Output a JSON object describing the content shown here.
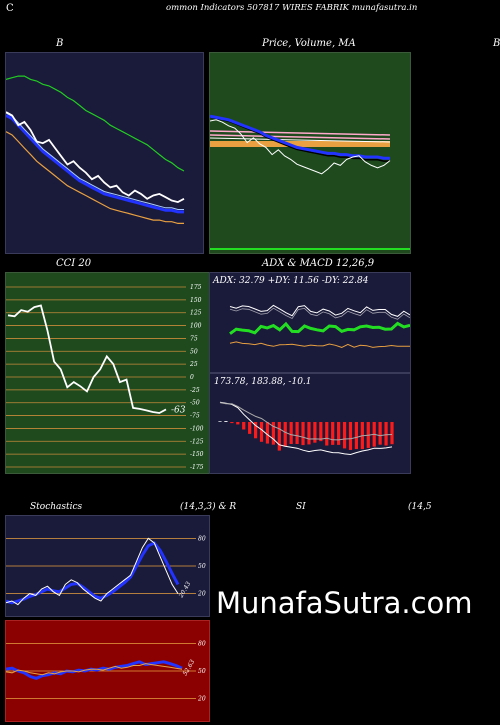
{
  "header": {
    "c_letter": "C",
    "title": "ommon  Indicators 507817 WIRES FABRIK munafasutra.in"
  },
  "labels": {
    "bollinger": "B",
    "price_ma": "Price,  Volume, MA",
    "right_edge": "B",
    "cci": "CCI 20",
    "adx_macd": "ADX  & MACD 12,26,9",
    "adx_values": "ADX: 32.79  +DY: 11.56  -DY: 22.84",
    "macd_values": "173.78,  183.88,  -10.1",
    "stochastics": "Stochastics",
    "stoch_params": "(14,3,3) & R",
    "si": "SI",
    "si_params": "(14,5",
    "watermark": "MunafaSutra.com",
    "cci_value": "-63",
    "stoch_value": "20.43",
    "rsi_value": "52.63"
  },
  "colors": {
    "navy_panel": "#1a1a3a",
    "green_panel": "#1e4a1e",
    "red_panel": "#8b0000",
    "orange": "#e8a040",
    "blue": "#2222ff",
    "bright_green": "#22dd22",
    "red_bars": "#ff1a1a"
  },
  "chart_data": [
    {
      "type": "line",
      "title": "B",
      "series": [
        {
          "values": [
            230,
            228,
            222,
            224,
            219,
            212,
            211,
            213,
            208,
            203,
            198,
            200,
            196,
            193,
            189,
            191,
            187,
            184,
            185,
            181,
            179,
            182,
            180,
            177,
            179,
            180,
            178,
            176,
            175,
            177
          ]
        },
        {
          "values": [
            228,
            226,
            222,
            218,
            214,
            210,
            206,
            203,
            200,
            197,
            194,
            191,
            188,
            186,
            184,
            182,
            180,
            179,
            178,
            177,
            176,
            175,
            174,
            173,
            172,
            171,
            170,
            170,
            169,
            169
          ]
        },
        {
          "values": [
            218,
            216,
            212,
            208,
            204,
            200,
            197,
            194,
            191,
            188,
            185,
            183,
            181,
            179,
            177,
            175,
            173,
            171,
            170,
            169,
            168,
            167,
            166,
            165,
            164,
            164,
            163,
            163,
            162,
            162
          ]
        },
        {
          "values": [
            250,
            251,
            252,
            252,
            250,
            249,
            247,
            246,
            244,
            242,
            239,
            237,
            234,
            231,
            229,
            227,
            225,
            222,
            220,
            218,
            216,
            214,
            212,
            210,
            207,
            204,
            201,
            199,
            196,
            194
          ]
        }
      ]
    },
    {
      "type": "line",
      "title": "Price,  Volume, MA",
      "series": [
        {
          "values": [
            200,
            201,
            199,
            196,
            194,
            189,
            182,
            186,
            181,
            178,
            172,
            176,
            171,
            168,
            164,
            162,
            160,
            158,
            156,
            160,
            165,
            163,
            168,
            170,
            171,
            166,
            163,
            161,
            163,
            167
          ]
        },
        {
          "values": [
            204,
            203,
            202,
            201,
            199,
            197,
            195,
            193,
            191,
            188,
            186,
            184,
            182,
            180,
            178,
            177,
            176,
            175,
            174,
            173,
            173,
            172,
            172,
            171,
            171,
            170,
            170,
            170,
            169,
            169
          ]
        }
      ]
    },
    {
      "type": "line",
      "title": "CCI 20",
      "ylim": [
        -175,
        175
      ],
      "yticks": [
        175,
        150,
        125,
        100,
        75,
        50,
        25,
        0,
        -25,
        -50,
        -75,
        -100,
        -125,
        -150,
        -175
      ],
      "series": [
        {
          "values": [
            120,
            118,
            130,
            127,
            136,
            139,
            90,
            30,
            15,
            -20,
            -10,
            -18,
            -28,
            0,
            15,
            40,
            25,
            -10,
            -5,
            -60,
            -62,
            -65,
            -68,
            -70,
            -63
          ]
        }
      ]
    },
    {
      "type": "line",
      "title": "ADX  & MACD 12,26,9",
      "series": [
        {
          "name": "ADX",
          "values": [
            32.8,
            31.9,
            33.1,
            32.8,
            31.5,
            30.2,
            30.6,
            33.4,
            31.5,
            29.5,
            27.9,
            32.7,
            33.3,
            30.2,
            29.4,
            31.4,
            30.4,
            28.2,
            29.2,
            31.8,
            30.5,
            29.5,
            32.6,
            30.7,
            31.2,
            31.2,
            28.6,
            27.5,
            30.3,
            28.3
          ]
        },
        {
          "name": "+DY",
          "values": [
            13.2,
            13.9,
            13.1,
            12.9,
            12.5,
            13.2,
            12.2,
            11.6,
            12.4,
            12.5,
            12.7,
            12.1,
            11.6,
            12.2,
            11.9,
            11.8,
            12.8,
            12.1,
            11.0,
            12.6,
            11.1,
            12.1,
            11.9,
            11.0,
            11.4,
            11.5,
            12.0,
            11.6,
            11.6,
            11.6
          ]
        },
        {
          "name": "-DY",
          "values": [
            18.3,
            20.7,
            20.2,
            19.9,
            18.8,
            22.2,
            21.4,
            22.6,
            20.4,
            23.5,
            19.5,
            19.4,
            22.4,
            21.1,
            20.4,
            19.8,
            22.4,
            22.1,
            19.6,
            20.6,
            20.4,
            22.0,
            22.4,
            21.6,
            21.7,
            20.7,
            20.8,
            23.8,
            21.9,
            22.8
          ]
        }
      ]
    },
    {
      "type": "bar",
      "title": "173.78,  183.88,  -10.1",
      "series": [
        {
          "name": "MACD",
          "values": [
            210.0,
            209.1,
            208.2,
            205.5,
            200.2,
            195.6,
            191.1,
            187.8,
            183.8,
            180.1,
            175.5,
            174.4,
            173.6,
            172.8,
            171.2,
            170.0,
            170.9,
            171.4,
            170.2,
            169.2,
            169.1,
            168.2,
            167.7,
            169.2,
            170.5,
            171.4,
            172.8,
            172.6,
            173.0,
            173.8
          ]
        },
        {
          "name": "Signal",
          "values": [
            209.7,
            208.7,
            208.7,
            206.6,
            203.6,
            201.0,
            198.5,
            196.8,
            193.6,
            190.4,
            188.5,
            185.6,
            183.6,
            182.8,
            181.7,
            180.2,
            180.3,
            180.1,
            180.9,
            179.6,
            179.5,
            180.2,
            180.4,
            181.5,
            182.8,
            183.2,
            184.0,
            182.9,
            183.7,
            183.9
          ]
        },
        {
          "name": "Histogram",
          "values": [
            0.3,
            0.4,
            -0.5,
            -1.1,
            -3.4,
            -5.4,
            -7.4,
            -9.0,
            -9.8,
            -10.3,
            -13.0,
            -11.2,
            -10.0,
            -10.0,
            -10.5,
            -10.2,
            -9.4,
            -8.7,
            -10.7,
            -10.4,
            -10.4,
            -12.0,
            -12.7,
            -12.3,
            -12.3,
            -11.8,
            -11.2,
            -10.3,
            -10.7,
            -10.1
          ]
        }
      ]
    },
    {
      "type": "line",
      "title": "Stochastics",
      "ylim": [
        0,
        100
      ],
      "yticks": [
        80,
        50,
        20
      ],
      "series": [
        {
          "values": [
            10,
            12,
            8,
            15,
            20,
            18,
            25,
            28,
            22,
            18,
            30,
            35,
            32,
            25,
            20,
            15,
            12,
            20,
            25,
            30,
            35,
            40,
            55,
            70,
            80,
            75,
            60,
            45,
            30,
            20
          ]
        },
        {
          "values": [
            12,
            10,
            12,
            14,
            17,
            19,
            22,
            25,
            23,
            22,
            26,
            30,
            31,
            27,
            22,
            17,
            15,
            18,
            22,
            27,
            32,
            38,
            50,
            62,
            72,
            75,
            67,
            55,
            42,
            30
          ]
        }
      ]
    },
    {
      "type": "line",
      "title": "RSI",
      "ylim": [
        0,
        100
      ],
      "yticks": [
        80,
        50,
        20
      ],
      "series": [
        {
          "values": [
            52,
            53,
            50,
            48,
            44,
            42,
            45,
            46,
            48,
            47,
            50,
            49,
            51,
            50,
            52,
            51,
            53,
            52,
            54,
            55,
            56,
            58,
            60,
            57,
            58,
            59,
            60,
            58,
            56,
            53
          ]
        },
        {
          "values": [
            49,
            48,
            51,
            50,
            48,
            47,
            46,
            48,
            47,
            49,
            50,
            50,
            49,
            51,
            52,
            52,
            51,
            53,
            55,
            53,
            54,
            56,
            56,
            58,
            57,
            56,
            55,
            54,
            53,
            52
          ]
        }
      ]
    }
  ]
}
